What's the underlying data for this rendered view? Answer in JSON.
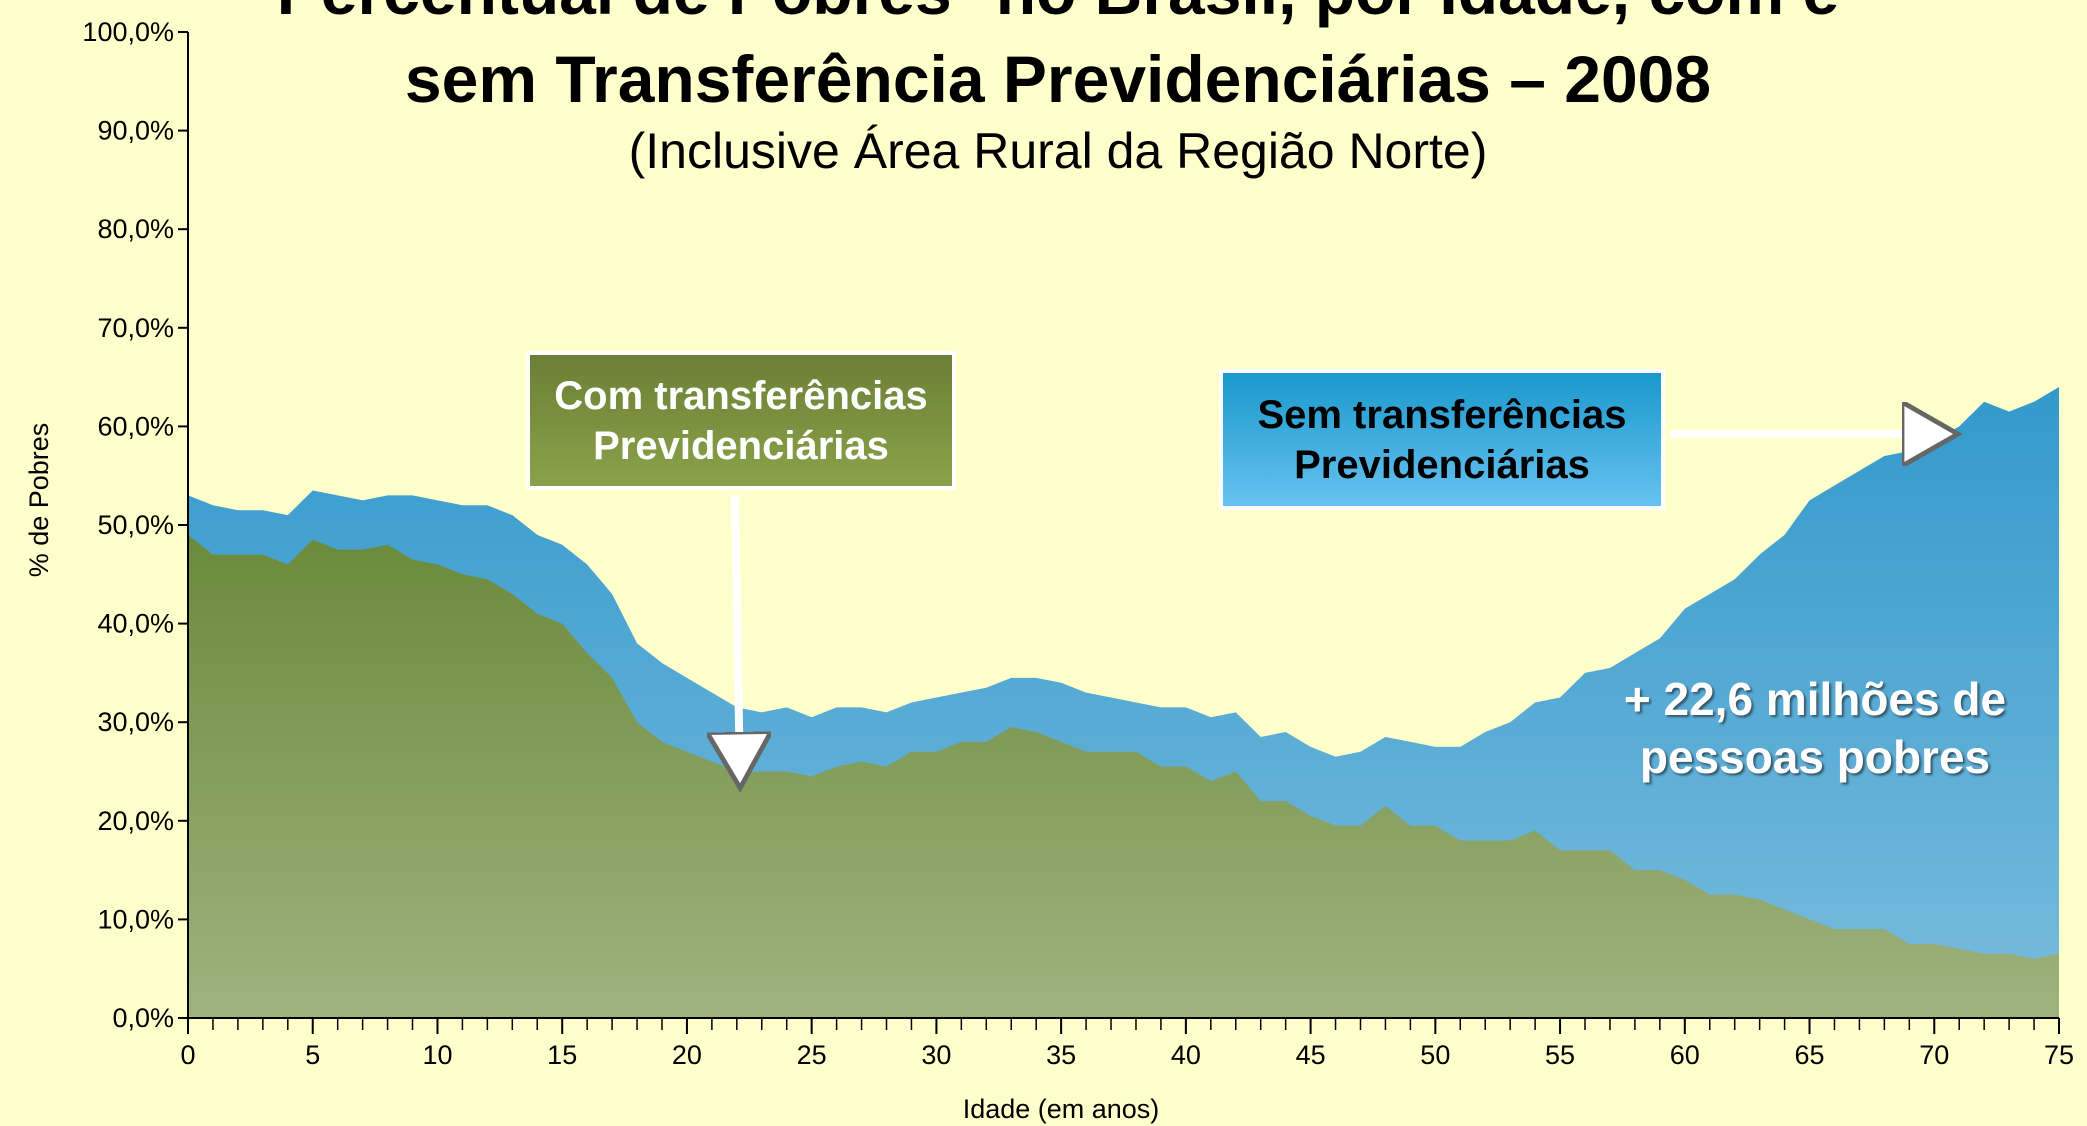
{
  "chart_data": {
    "type": "area",
    "title": [
      "Percentual de Pobres* no Brasil, por Idade, com e",
      "sem Transferência Previdenciárias – 2008"
    ],
    "subtitle": "(Inclusive Área Rural da Região Norte)",
    "x_label": "Idade (em anos)",
    "y_label": "% de Pobres",
    "x": [
      0,
      1,
      2,
      3,
      4,
      5,
      6,
      7,
      8,
      9,
      10,
      11,
      12,
      13,
      14,
      15,
      16,
      17,
      18,
      19,
      20,
      21,
      22,
      23,
      24,
      25,
      26,
      27,
      28,
      29,
      30,
      31,
      32,
      33,
      34,
      35,
      36,
      37,
      38,
      39,
      40,
      41,
      42,
      43,
      44,
      45,
      46,
      47,
      48,
      49,
      50,
      51,
      52,
      53,
      54,
      55,
      56,
      57,
      58,
      59,
      60,
      61,
      62,
      63,
      64,
      65,
      66,
      67,
      68,
      69,
      70,
      71,
      72,
      73,
      74,
      75
    ],
    "series": [
      {
        "name": "Sem transferências Previdenciárias",
        "color": "#3399cc",
        "values": [
          53,
          52,
          51.5,
          51.5,
          51,
          53.5,
          53,
          52.5,
          53,
          53,
          52.5,
          52,
          52,
          51,
          49,
          48,
          46,
          43,
          38,
          36,
          34.5,
          33,
          31.5,
          31,
          31.5,
          30.5,
          31.5,
          31.5,
          31,
          32,
          32.5,
          33,
          33.5,
          34.5,
          34.5,
          34,
          33,
          32.5,
          32,
          31.5,
          31.5,
          30.5,
          31,
          28.5,
          29,
          27.5,
          26.5,
          27,
          28.5,
          28,
          27.5,
          27.5,
          29,
          30,
          32,
          32.5,
          35,
          35.5,
          37,
          38.5,
          41.5,
          43,
          44.5,
          47,
          49,
          52.5,
          54,
          55.5,
          57,
          57.5,
          58.5,
          60,
          62.5,
          61.5,
          62.5,
          64
        ]
      },
      {
        "name": "Com transferências Previdenciárias",
        "color": "#6b8a3a",
        "values": [
          49,
          47,
          47,
          47,
          46,
          48.5,
          47.5,
          47.5,
          48,
          46.5,
          46,
          45,
          44.5,
          43,
          41,
          40,
          37,
          34.5,
          30,
          28,
          27,
          26,
          25,
          25,
          25,
          24.5,
          25.5,
          26,
          25.5,
          27,
          27,
          28,
          28,
          29.5,
          29,
          28,
          27,
          27,
          27,
          25.5,
          25.5,
          24,
          25,
          22,
          22,
          20.5,
          19.5,
          19.5,
          21.5,
          19.5,
          19.5,
          18,
          18,
          18,
          19,
          17,
          17,
          17,
          15,
          15,
          14,
          12.5,
          12.5,
          12,
          11,
          10,
          9,
          9,
          9,
          7.5,
          7.5,
          7,
          6.5,
          6.5,
          6,
          6.5
        ]
      }
    ],
    "annotation": "+ 22,6 milhões de pessoas pobres",
    "xlim": [
      0,
      75
    ],
    "xticks": [
      0,
      5,
      10,
      15,
      20,
      25,
      30,
      35,
      40,
      45,
      50,
      55,
      60,
      65,
      70,
      75
    ],
    "ylim": [
      0,
      100
    ],
    "yticks": [
      {
        "value": 0,
        "label": "0,0%"
      },
      {
        "value": 10,
        "label": "10,0%"
      },
      {
        "value": 20,
        "label": "20,0%"
      },
      {
        "value": 30,
        "label": "30,0%"
      },
      {
        "value": 40,
        "label": "40,0%"
      },
      {
        "value": 50,
        "label": "50,0%"
      },
      {
        "value": 60,
        "label": "60,0%"
      },
      {
        "value": 70,
        "label": "70,0%"
      },
      {
        "value": 80,
        "label": "80,0%"
      },
      {
        "value": 90,
        "label": "90,0%"
      },
      {
        "value": 100,
        "label": "100,0%"
      }
    ]
  }
}
